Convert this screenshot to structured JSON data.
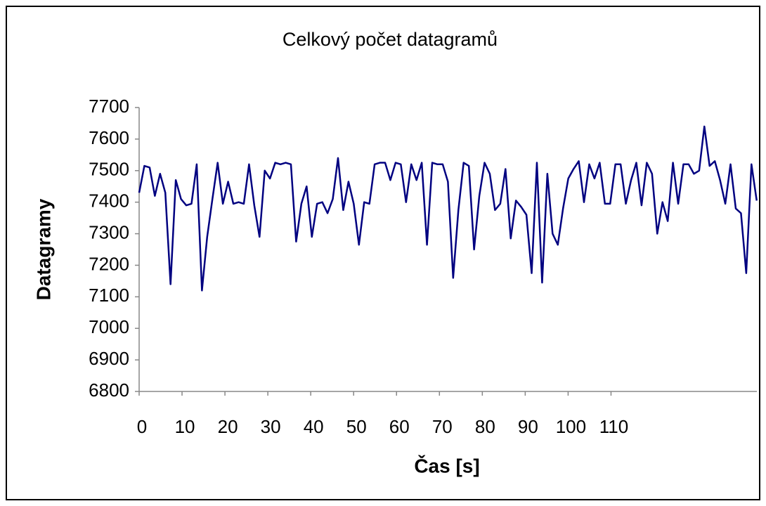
{
  "chart_data": {
    "type": "line",
    "title": "Celkový počet datagramů",
    "x_label": "Čas [s]",
    "y_label": "Datagramy",
    "x": [
      0,
      1.22,
      2.44,
      3.66,
      4.88,
      6.1,
      7.32,
      8.54,
      9.76,
      10.98,
      12.2,
      13.42,
      14.64,
      15.86,
      17.08,
      18.3,
      19.52,
      20.74,
      21.96,
      23.18,
      24.4,
      25.62,
      26.84,
      28.06,
      29.28,
      30.5,
      31.72,
      32.94,
      34.16,
      35.38,
      36.6,
      37.82,
      39.04,
      40.26,
      41.48,
      42.7,
      43.92,
      45.14,
      46.36,
      47.58,
      48.8,
      50.02,
      51.24,
      52.46,
      53.68,
      54.9,
      56.12,
      57.34,
      58.56,
      59.78,
      61,
      62.22,
      63.44,
      64.66,
      65.88,
      67.1,
      68.32,
      69.54,
      70.76,
      71.98,
      73.2,
      74.42,
      75.64,
      76.86,
      78.08,
      79.3,
      80.52,
      81.74,
      82.96,
      84.18,
      85.4,
      86.62,
      87.84,
      89.06,
      90.28,
      91.5,
      92.72,
      93.94,
      95.16,
      96.38,
      97.6,
      98.82,
      100.04,
      101.26,
      102.48,
      103.7,
      104.92,
      106.14,
      107.36,
      108.58,
      109.8,
      111.02,
      112.24,
      113.46,
      114.68,
      115.9,
      117.12,
      118.34,
      119.56,
      120.78,
      122,
      123.22,
      124.44,
      125.66,
      126.88,
      128.1,
      129.32,
      130.54,
      131.76,
      132.98,
      134.2,
      135.42,
      136.64,
      137.86,
      139.08,
      140.3,
      141.52,
      142.74,
      143.96
    ],
    "series": [
      {
        "name": "Datagramy",
        "color": "#000080",
        "values": [
          7430,
          7515,
          7510,
          7420,
          7490,
          7430,
          7140,
          7470,
          7410,
          7390,
          7395,
          7520,
          7120,
          7290,
          7410,
          7525,
          7395,
          7465,
          7395,
          7400,
          7395,
          7520,
          7390,
          7290,
          7500,
          7475,
          7525,
          7520,
          7525,
          7520,
          7275,
          7395,
          7450,
          7290,
          7395,
          7400,
          7365,
          7410,
          7540,
          7375,
          7465,
          7395,
          7265,
          7400,
          7395,
          7520,
          7525,
          7525,
          7470,
          7525,
          7520,
          7400,
          7520,
          7470,
          7525,
          7265,
          7525,
          7520,
          7520,
          7465,
          7160,
          7375,
          7525,
          7515,
          7250,
          7420,
          7525,
          7490,
          7375,
          7395,
          7505,
          7285,
          7405,
          7385,
          7360,
          7175,
          7525,
          7145,
          7490,
          7300,
          7265,
          7380,
          7475,
          7505,
          7530,
          7400,
          7520,
          7475,
          7525,
          7395,
          7395,
          7520,
          7520,
          7395,
          7470,
          7525,
          7390,
          7525,
          7490,
          7300,
          7400,
          7340,
          7525,
          7395,
          7520,
          7520,
          7490,
          7500,
          7640,
          7515,
          7530,
          7470,
          7395,
          7520,
          7380,
          7365,
          7175,
          7520,
          7405
        ]
      }
    ],
    "xlim": [
      0,
      144
    ],
    "xticks": [
      0,
      10,
      20,
      30,
      40,
      50,
      60,
      70,
      80,
      90,
      100,
      110
    ],
    "ylim": [
      6800,
      7700
    ],
    "yticks": [
      6800,
      6900,
      7000,
      7100,
      7200,
      7300,
      7400,
      7500,
      7600,
      7700
    ],
    "grid": false
  }
}
